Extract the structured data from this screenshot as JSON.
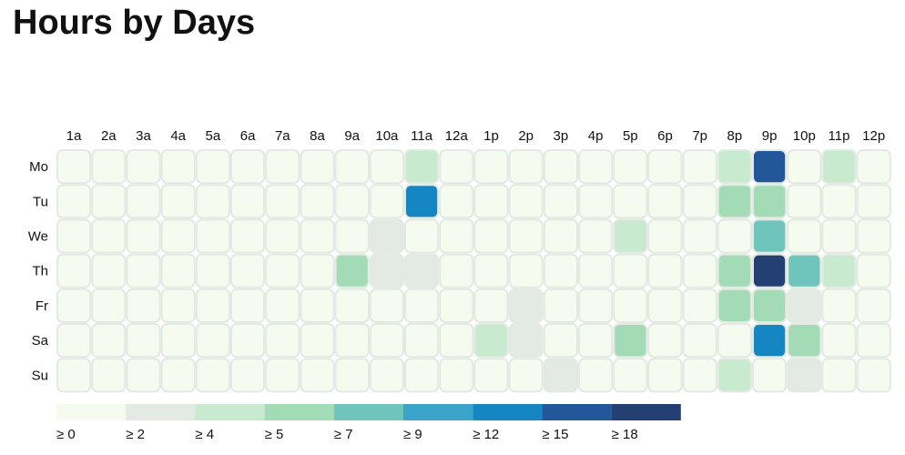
{
  "title": "Hours by Days",
  "chart_data": {
    "type": "heatmap",
    "title": "Hours by Days",
    "x_categories": [
      "1a",
      "2a",
      "3a",
      "4a",
      "5a",
      "6a",
      "7a",
      "8a",
      "9a",
      "10a",
      "11a",
      "12a",
      "1p",
      "2p",
      "3p",
      "4p",
      "5p",
      "6p",
      "7p",
      "8p",
      "9p",
      "10p",
      "11p",
      "12p"
    ],
    "y_categories": [
      "Mo",
      "Tu",
      "We",
      "Th",
      "Fr",
      "Sa",
      "Su"
    ],
    "values": [
      [
        0,
        0,
        0,
        0,
        0,
        0,
        0,
        0,
        0,
        0,
        4,
        0,
        0,
        0,
        0,
        0,
        0,
        0,
        0,
        4,
        15,
        0,
        4,
        0
      ],
      [
        0,
        0,
        0,
        0,
        0,
        0,
        0,
        0,
        0,
        0,
        12,
        0,
        0,
        0,
        0,
        0,
        0,
        0,
        0,
        5,
        5,
        0,
        0,
        0
      ],
      [
        0,
        0,
        0,
        0,
        0,
        0,
        0,
        0,
        0,
        2,
        0,
        0,
        0,
        0,
        0,
        0,
        4,
        0,
        0,
        0,
        7,
        0,
        0,
        0
      ],
      [
        0,
        0,
        0,
        0,
        0,
        0,
        0,
        0,
        5,
        2,
        2,
        0,
        0,
        0,
        0,
        0,
        0,
        0,
        0,
        5,
        18,
        7,
        4,
        0
      ],
      [
        0,
        0,
        0,
        0,
        0,
        0,
        0,
        0,
        0,
        0,
        0,
        0,
        0,
        2,
        0,
        0,
        0,
        0,
        0,
        5,
        5,
        2,
        0,
        0
      ],
      [
        0,
        0,
        0,
        0,
        0,
        0,
        0,
        0,
        0,
        0,
        0,
        0,
        4,
        2,
        0,
        0,
        5,
        0,
        0,
        0,
        12,
        5,
        0,
        0
      ],
      [
        0,
        0,
        0,
        0,
        0,
        0,
        0,
        0,
        0,
        0,
        0,
        0,
        0,
        0,
        2,
        0,
        0,
        0,
        0,
        4,
        0,
        2,
        0,
        0
      ]
    ],
    "legend": {
      "thresholds": [
        0,
        2,
        4,
        5,
        7,
        9,
        12,
        15,
        18
      ],
      "labels": [
        "≥ 0",
        "≥ 2",
        "≥ 4",
        "≥ 5",
        "≥ 7",
        "≥ 9",
        "≥ 12",
        "≥ 15",
        "≥ 18"
      ],
      "colors": [
        "#f6fbef",
        "#e3e9e3",
        "#c8ebcf",
        "#a4dbb7",
        "#6fc4bc",
        "#3aa4ca",
        "#1686c2",
        "#22589a",
        "#243f72"
      ],
      "placement": "bottom-left"
    },
    "cell_border_color": "#e3e9e3"
  }
}
